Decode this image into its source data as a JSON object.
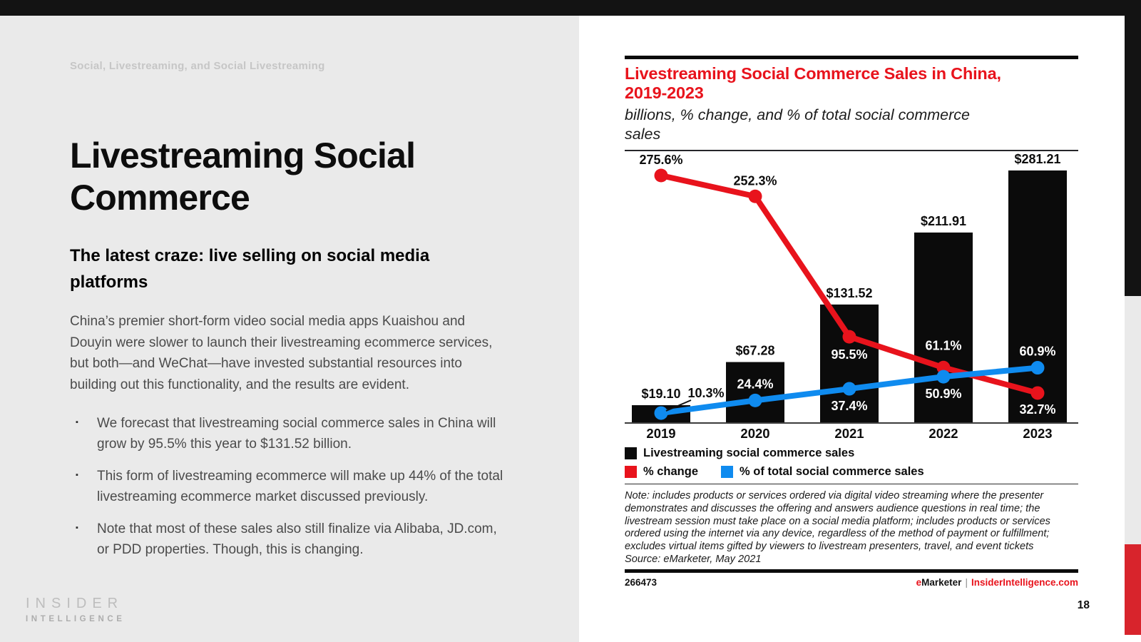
{
  "page": {
    "number": "18"
  },
  "header": {
    "eyebrow": "Social, Livestreaming, and Social Livestreaming"
  },
  "left_panel": {
    "title": "Livestreaming Social Commerce",
    "subtitle": "The latest craze: live selling on social media platforms",
    "paragraph": "China’s premier short-form video social media apps Kuaishou and Douyin were slower to launch their livestreaming ecommerce services, but both—and WeChat—have invested substantial resources into building out this functionality, and the results are evident.",
    "bullets": [
      "We forecast that livestreaming social commerce sales in China will grow by 95.5% this year to $131.52 billion.",
      "This form of livestreaming ecommerce will make up 44% of the total livestreaming ecommerce market discussed previously.",
      "Note that most of these sales also still finalize via Alibaba, JD.com, or PDD properties. Though, this is changing."
    ],
    "logo": {
      "line1": "INSIDER",
      "line2": "INTELLIGENCE"
    }
  },
  "chart_panel": {
    "title_line1": "Livestreaming Social Commerce Sales in China,",
    "title_line2": "2019-2023",
    "subtitle": "billions, % change, and % of total social commerce sales",
    "note": "Note: includes products or services ordered via digital video streaming where the presenter demonstrates and discusses the offering and answers audience questions in real time; the livestream session must take place on a social media platform; includes products or services ordered using the internet via any device, regardless of the method of payment or fulfillment; excludes virtual items gifted by viewers to livestream presenters, travel, and event tickets",
    "source": "Source: eMarketer, May 2021",
    "footer": {
      "id": "266473",
      "brand_e": "e",
      "brand_rest": "Marketer",
      "separator": "|",
      "site": "InsiderIntelligence.com"
    }
  },
  "chart_data": {
    "type": "bar+line combo",
    "title": "Livestreaming Social Commerce Sales in China, 2019-2023",
    "subtitle": "billions, % change, and % of total social commerce sales",
    "categories": [
      "2019",
      "2020",
      "2021",
      "2022",
      "2023"
    ],
    "ylim": [
      0,
      302.7
    ],
    "grid": "off",
    "legend_position": "bottom-left",
    "legend": [
      {
        "label": "Livestreaming social commerce sales",
        "color": "#0b0b0b"
      },
      {
        "label": "% change",
        "color": "#e8131c"
      },
      {
        "label": "% of total social commerce sales",
        "color": "#0f8bef"
      }
    ],
    "series": [
      {
        "name": "Livestreaming social commerce sales",
        "type": "bar",
        "unit": "$ billions",
        "color": "#0b0b0b",
        "values": [
          19.1,
          67.28,
          131.52,
          211.91,
          281.21
        ],
        "labels": [
          "$19.10",
          "$67.28",
          "$131.52",
          "$211.91",
          "$281.21"
        ]
      },
      {
        "name": "% change",
        "type": "line",
        "unit": "%",
        "color": "#e8131c",
        "values": [
          275.6,
          252.3,
          95.5,
          61.1,
          32.7
        ],
        "labels": [
          "275.6%",
          "252.3%",
          "95.5%",
          "61.1%",
          "32.7%"
        ],
        "label_dx": [
          0,
          0,
          0,
          0,
          0
        ],
        "label_dy": [
          -16,
          -16,
          31,
          -25,
          29
        ],
        "label_color": [
          "#0d0d0d",
          "#0d0d0d",
          "#ffffff",
          "#ffffff",
          "#ffffff"
        ]
      },
      {
        "name": "% of total social commerce sales",
        "type": "line",
        "unit": "%",
        "color": "#0f8bef",
        "values": [
          10.3,
          24.4,
          37.4,
          50.9,
          60.9
        ],
        "labels": [
          "10.3%",
          "24.4%",
          "37.4%",
          "50.9%",
          "60.9%"
        ],
        "label_dx": [
          63,
          0,
          0,
          0,
          0
        ],
        "label_dy": [
          -22,
          -17,
          30,
          30,
          -17
        ],
        "label_color": [
          "#0d0d0d",
          "#ffffff",
          "#ffffff",
          "#ffffff",
          "#ffffff"
        ],
        "callout_index": 0
      }
    ]
  }
}
